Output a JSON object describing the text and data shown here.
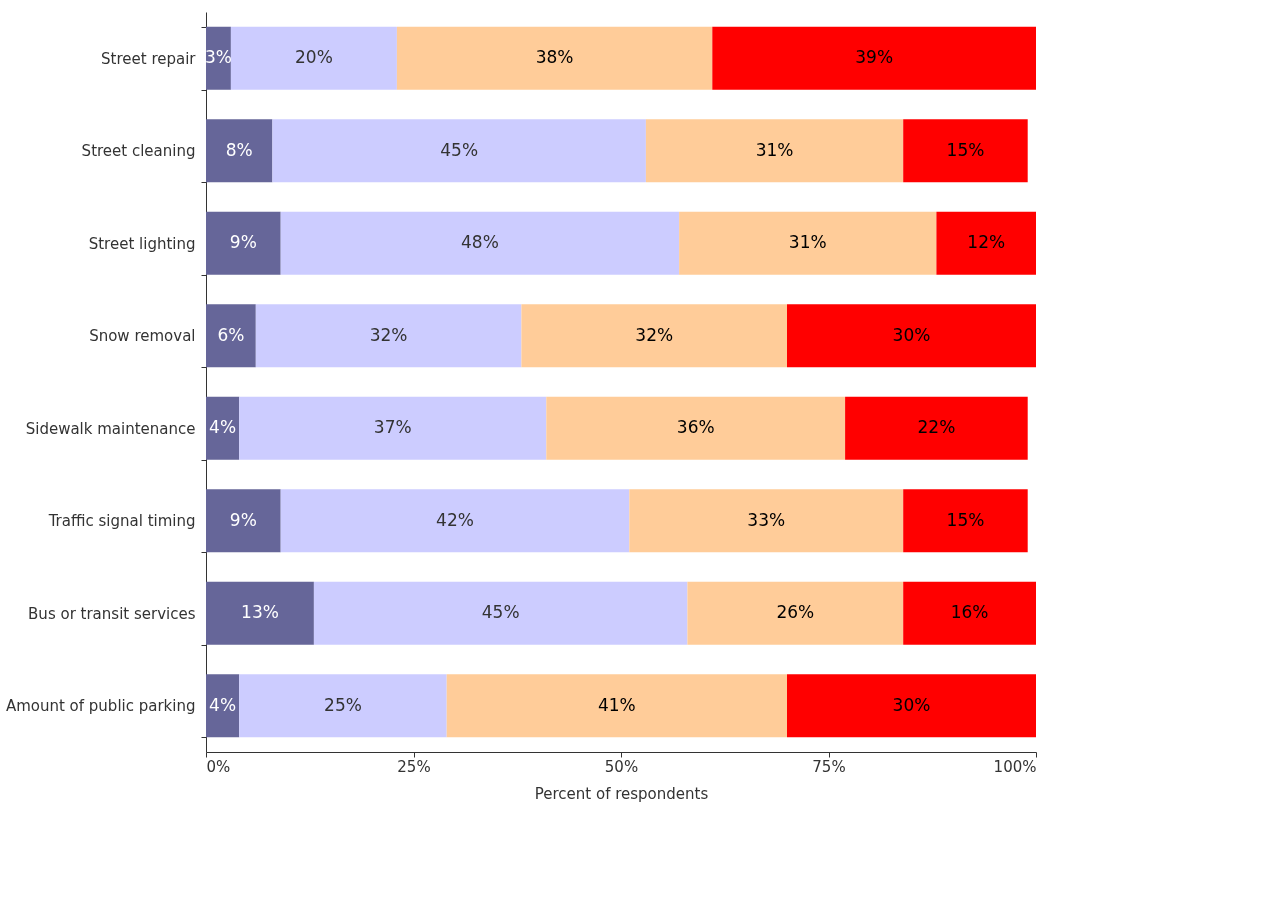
{
  "chart_data": {
    "type": "bar",
    "orientation": "horizontal",
    "stacked": true,
    "categories": [
      "Street repair",
      "Street cleaning",
      "Street lighting",
      "Snow removal",
      "Sidewalk maintenance",
      "Traffic signal timing",
      "Bus or transit services",
      "Amount of public parking"
    ],
    "series": [
      {
        "color": "#666699",
        "values": [
          3,
          8,
          9,
          6,
          4,
          9,
          13,
          4
        ],
        "value_labels": [
          "3%",
          "8%",
          "9%",
          "6%",
          "4%",
          "9%",
          "13%",
          "4%"
        ]
      },
      {
        "color": "#ccccff",
        "values": [
          20,
          45,
          48,
          32,
          37,
          42,
          45,
          25
        ],
        "value_labels": [
          "20%",
          "45%",
          "48%",
          "32%",
          "37%",
          "42%",
          "45%",
          "25%"
        ]
      },
      {
        "color": "#ffcc99",
        "values": [
          38,
          31,
          31,
          32,
          36,
          33,
          26,
          41
        ],
        "value_labels": [
          "38%",
          "31%",
          "31%",
          "32%",
          "36%",
          "33%",
          "26%",
          "41%"
        ]
      },
      {
        "color": "#ff0000",
        "values": [
          39,
          15,
          12,
          30,
          22,
          15,
          16,
          30
        ],
        "value_labels": [
          "39%",
          "15%",
          "12%",
          "30%",
          "22%",
          "15%",
          "16%",
          "30%"
        ]
      }
    ],
    "xlim": [
      0,
      100
    ],
    "xticks": [
      {
        "value": 0,
        "label": "0%"
      },
      {
        "value": 25,
        "label": "25%"
      },
      {
        "value": 50,
        "label": "50%"
      },
      {
        "value": 75,
        "label": "75%"
      },
      {
        "value": 100,
        "label": "100%"
      }
    ],
    "xlabel": "Percent of respondents",
    "grid": false
  }
}
